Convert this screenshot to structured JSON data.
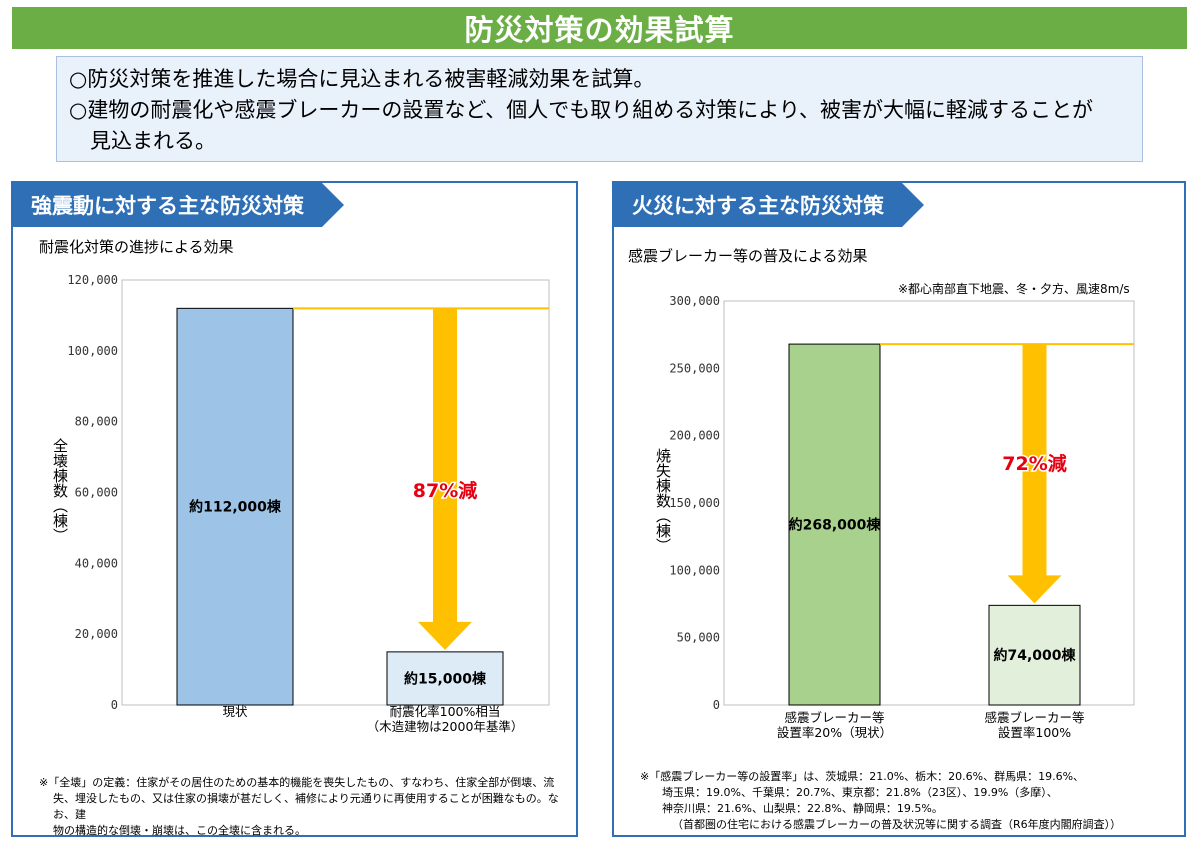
{
  "page": {
    "title": "防災対策の効果試算",
    "summary": [
      "○防災対策を推進した場合に見込まれる被害軽減効果を試算。",
      "○建物の耐震化や感震ブレーカーの設置など、個人でも取り組める対策により、被害が大幅に軽減することが",
      "見込まれる。"
    ]
  },
  "left": {
    "heading": "強震動に対する主な防災対策",
    "subtitle": "耐震化対策の進捗による効果",
    "ylabel": "全壊棟数（棟）",
    "note": [
      "※「全壊」の定義：住家がその居住のための基本的機能を喪失したもの、すなわち、住家全部が倒壊、流",
      "失、埋没したもの、又は住家の損壊が甚だしく、補修により元通りに再使用することが困難なもの。なお、建",
      "物の構造的な倒壊・崩壊は、この全壊に含まれる。"
    ]
  },
  "right": {
    "heading": "火災に対する主な防災対策",
    "subtitle": "感震ブレーカー等の普及による効果",
    "condition": "※都心南部直下地震、冬・夕方、風速8m/s",
    "ylabel": "焼失棟数（棟）",
    "note": [
      "※「感震ブレーカー等の設置率」は、茨城県：21.0%、栃木：20.6%、群馬県：19.6%、",
      "埼玉県：19.0%、千葉県：20.7%、東京都：21.8%（23区）、19.9%（多摩）、",
      "神奈川県：21.6%、山梨県：22.8%、静岡県：19.5%。",
      "（首都圏の住宅における感震ブレーカーの普及状況等に関する調査（R6年度内閣府調査））"
    ]
  },
  "chart_data": [
    {
      "type": "bar",
      "title": "耐震化対策の進捗による効果",
      "ylabel": "全壊棟数（棟）",
      "ylim": [
        0,
        120000
      ],
      "yticks": [
        0,
        20000,
        40000,
        60000,
        80000,
        100000,
        120000
      ],
      "ytick_labels": [
        "0",
        "20,000",
        "40,000",
        "60,000",
        "80,000",
        "100,000",
        "120,000"
      ],
      "categories": [
        [
          "現状"
        ],
        [
          "耐震化率100%相当",
          "（木造建物は2000年基準）"
        ]
      ],
      "values": [
        112000,
        15000
      ],
      "data_labels": [
        "約112,000棟",
        "約15,000棟"
      ],
      "colors": [
        "#9dc3e6",
        "#ddebf7"
      ],
      "annotation": "87%減"
    },
    {
      "type": "bar",
      "title": "感震ブレーカー等の普及による効果",
      "ylabel": "焼失棟数（棟）",
      "ylim": [
        0,
        300000
      ],
      "yticks": [
        0,
        50000,
        100000,
        150000,
        200000,
        250000,
        300000
      ],
      "ytick_labels": [
        "0",
        "50,000",
        "100,000",
        "150,000",
        "200,000",
        "250,000",
        "300,000"
      ],
      "categories": [
        [
          "感震ブレーカー等",
          "設置率20%（現状）"
        ],
        [
          "感震ブレーカー等",
          "設置率100%"
        ]
      ],
      "values": [
        268000,
        74000
      ],
      "data_labels": [
        "約268,000棟",
        "約74,000棟"
      ],
      "colors": [
        "#a9d18e",
        "#e2efda"
      ],
      "annotation": "72%減"
    }
  ],
  "colors": {
    "title": "#6aae45",
    "panel": "#2e6fb5",
    "arrow": "#ffc000",
    "accent_text": "#e60012"
  }
}
